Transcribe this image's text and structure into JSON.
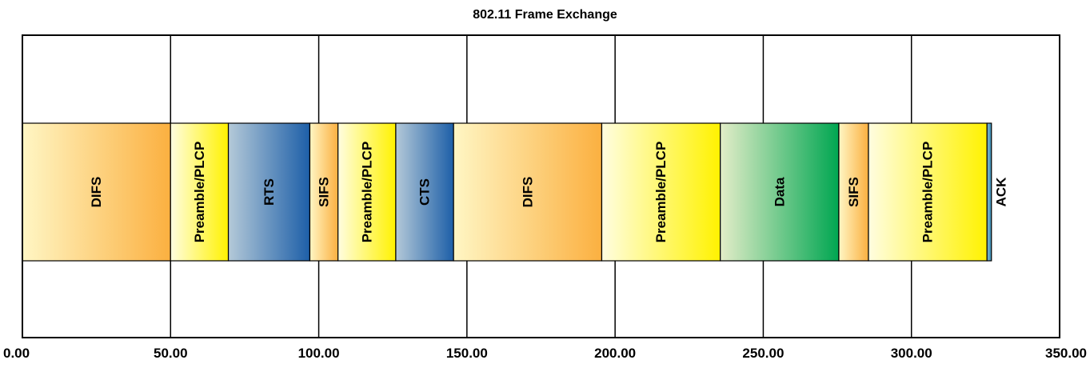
{
  "chart_data": {
    "type": "bar",
    "title": "802.11 Frame Exchange",
    "orientation": "horizontal-stacked",
    "xlim": [
      0,
      350
    ],
    "x_ticks": [
      {
        "value": 0,
        "label": "0.00"
      },
      {
        "value": 50,
        "label": "50.00"
      },
      {
        "value": 100,
        "label": "100.00"
      },
      {
        "value": 150,
        "label": "150.00"
      },
      {
        "value": 200,
        "label": "200.00"
      },
      {
        "value": 250,
        "label": "250.00"
      },
      {
        "value": 300,
        "label": "300.00"
      },
      {
        "value": 350,
        "label": "350.00"
      }
    ],
    "grid": true,
    "segments": [
      {
        "label": "DIFS",
        "start": 0,
        "end": 50,
        "style": "orange"
      },
      {
        "label": "Preamble/PLCP",
        "start": 50,
        "end": 69.5,
        "style": "yellow"
      },
      {
        "label": "RTS",
        "start": 69.5,
        "end": 97,
        "style": "blue"
      },
      {
        "label": "SIFS",
        "start": 97,
        "end": 106.5,
        "style": "orange"
      },
      {
        "label": "Preamble/PLCP",
        "start": 106.5,
        "end": 126,
        "style": "yellow"
      },
      {
        "label": "CTS",
        "start": 126,
        "end": 145.5,
        "style": "blue"
      },
      {
        "label": "DIFS",
        "start": 145.5,
        "end": 195.5,
        "style": "orange"
      },
      {
        "label": "Preamble/PLCP",
        "start": 195.5,
        "end": 235.5,
        "style": "yellow"
      },
      {
        "label": "Data",
        "start": 235.5,
        "end": 275.5,
        "style": "green"
      },
      {
        "label": "SIFS",
        "start": 275.5,
        "end": 285.5,
        "style": "orange"
      },
      {
        "label": "Preamble/PLCP",
        "start": 285.5,
        "end": 325.5,
        "style": "yellow"
      },
      {
        "label": "ACK",
        "start": 325.5,
        "end": 327,
        "style": "teal"
      }
    ],
    "colors": {
      "orange": [
        "#fff6c4",
        "#fbb040"
      ],
      "yellow": [
        "#fffde0",
        "#fff200"
      ],
      "blue": [
        "#b4c9d8",
        "#1d5fa8"
      ],
      "green": [
        "#e3edc8",
        "#00a651"
      ],
      "teal": [
        "#7fb3d0",
        "#3a8fb7"
      ]
    }
  }
}
